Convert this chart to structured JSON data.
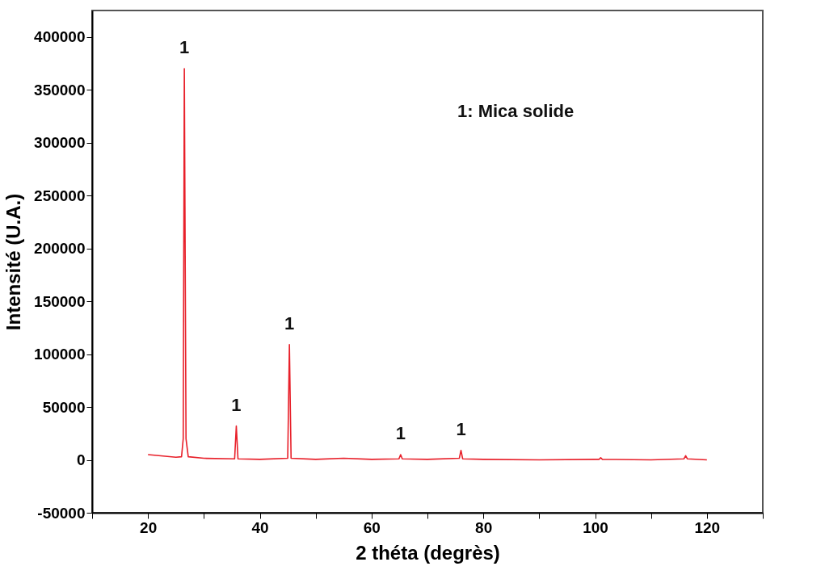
{
  "chart_data": {
    "type": "line",
    "xlabel": "2 théta (degrès)",
    "ylabel": "Intensité (U.A.)",
    "xlim": [
      10,
      130
    ],
    "ylim": [
      -50000,
      425000
    ],
    "xticks": [
      {
        "value": 10,
        "label": null
      },
      20,
      {
        "value": 30,
        "label": null
      },
      40,
      {
        "value": 50,
        "label": null
      },
      60,
      {
        "value": 70,
        "label": null
      },
      80,
      {
        "value": 90,
        "label": null
      },
      100,
      {
        "value": 110,
        "label": null
      },
      120,
      {
        "value": 130,
        "label": null
      }
    ],
    "yticks": [
      -50000,
      0,
      50000,
      100000,
      150000,
      200000,
      250000,
      300000,
      350000,
      400000
    ],
    "grid": false,
    "marker": "none",
    "line_style": "solid",
    "x": [
      20,
      25,
      26,
      26.3,
      26.5,
      26.8,
      27.2,
      30,
      35.5,
      35.8,
      36.1,
      40,
      45,
      45.3,
      45.6,
      50,
      55,
      60,
      64.9,
      65.2,
      65.5,
      70,
      75.7,
      76.0,
      76.3,
      80,
      90,
      100,
      100.7,
      101.0,
      101.3,
      110,
      115.9,
      116.2,
      116.5,
      120
    ],
    "series": [
      {
        "color": "#e8202a",
        "values": [
          5000,
          2500,
          3000,
          20000,
          370000,
          20000,
          3000,
          1500,
          1000,
          32000,
          1000,
          500,
          1500,
          109000,
          1500,
          500,
          1500,
          500,
          1000,
          5000,
          1000,
          500,
          1500,
          9000,
          1000,
          500,
          0,
          500,
          500,
          2000,
          500,
          0,
          1000,
          4000,
          1000,
          0
        ]
      }
    ],
    "annotations": [
      {
        "text": "1",
        "x": 26.5,
        "y": 370000
      },
      {
        "text": "1",
        "x": 35.8,
        "y": 32000
      },
      {
        "text": "1",
        "x": 45.3,
        "y": 109000
      },
      {
        "text": "1",
        "x": 65.2,
        "y": 5000
      },
      {
        "text": "1",
        "x": 76.0,
        "y": 9000
      },
      "1: Mica solide"
    ]
  }
}
